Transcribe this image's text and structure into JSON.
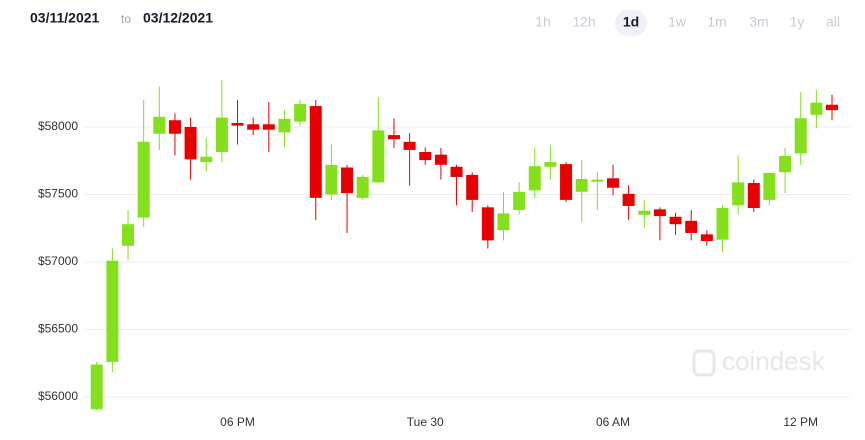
{
  "header": {
    "date_from": "03/11/2021",
    "separator": "to",
    "date_to": "03/12/2021",
    "ranges": [
      "1h",
      "12h",
      "1d",
      "1w",
      "1m",
      "3m",
      "1y",
      "all"
    ],
    "selected_range": "1d"
  },
  "chart_data": {
    "type": "candlestick",
    "watermark": "coindesk",
    "categories": [
      null,
      null,
      null,
      null,
      null,
      null,
      null,
      null,
      null,
      "06 PM",
      null,
      null,
      null,
      null,
      null,
      null,
      null,
      null,
      null,
      null,
      null,
      "Tue 30",
      null,
      null,
      null,
      null,
      null,
      null,
      null,
      null,
      null,
      null,
      null,
      "06 AM",
      null,
      null,
      null,
      null,
      null,
      null,
      null,
      null,
      null,
      null,
      null,
      "12 PM",
      null,
      null
    ],
    "up_color": "#84e01c",
    "down_color": "#e60000",
    "series": [
      {
        "name": "open",
        "values": [
          55910,
          56260,
          57120,
          57330,
          57950,
          58050,
          58000,
          57740,
          57815,
          58030,
          58020,
          58020,
          57960,
          58040,
          58155,
          57500,
          57700,
          57475,
          57590,
          57940,
          57890,
          57815,
          57795,
          57705,
          57645,
          57405,
          57235,
          57385,
          57530,
          57705,
          57725,
          57520,
          57595,
          57620,
          57505,
          57350,
          57390,
          57335,
          57305,
          57205,
          57165,
          57420,
          57585,
          57460,
          57665,
          57805,
          58090,
          58165
        ]
      },
      {
        "name": "high",
        "values": [
          56260,
          57100,
          57385,
          58200,
          58300,
          58100,
          58070,
          57920,
          58350,
          58200,
          58070,
          58185,
          58125,
          58200,
          58200,
          57870,
          57720,
          57645,
          58220,
          58065,
          57955,
          57850,
          57845,
          57720,
          57665,
          57420,
          57520,
          57590,
          57845,
          57865,
          57740,
          57755,
          57665,
          57720,
          57570,
          57460,
          57405,
          57365,
          57385,
          57235,
          57420,
          57790,
          57610,
          57665,
          57845,
          58260,
          58275,
          58240
        ]
      },
      {
        "name": "low",
        "values": [
          55900,
          56185,
          57015,
          57260,
          57830,
          57790,
          57610,
          57670,
          57740,
          57870,
          57940,
          57815,
          57850,
          58010,
          57310,
          57460,
          57215,
          57460,
          57585,
          57845,
          57565,
          57720,
          57610,
          57420,
          57370,
          57100,
          57160,
          57350,
          57475,
          57610,
          57445,
          57295,
          57385,
          57495,
          57310,
          57250,
          57160,
          57200,
          57160,
          57120,
          57075,
          57350,
          57370,
          57420,
          57510,
          57720,
          57990,
          58050
        ]
      },
      {
        "name": "close",
        "values": [
          56240,
          57010,
          57280,
          57890,
          58075,
          57950,
          57760,
          57780,
          58070,
          58010,
          57980,
          57980,
          58060,
          58170,
          57475,
          57720,
          57510,
          57630,
          57975,
          57910,
          57830,
          57755,
          57720,
          57630,
          57460,
          57160,
          57360,
          57520,
          57710,
          57740,
          57460,
          57615,
          57610,
          57550,
          57415,
          57380,
          57340,
          57280,
          57215,
          57155,
          57400,
          57590,
          57400,
          57660,
          57785,
          58065,
          58180,
          58125
        ]
      }
    ],
    "ylim": [
      55900,
      58500
    ],
    "yticks": [
      {
        "value": 56000,
        "label": "$56000"
      },
      {
        "value": 56500,
        "label": "$56500"
      },
      {
        "value": 57000,
        "label": "$57000"
      },
      {
        "value": 57500,
        "label": "$57500"
      },
      {
        "value": 58000,
        "label": "$58000"
      }
    ],
    "grid": true
  }
}
